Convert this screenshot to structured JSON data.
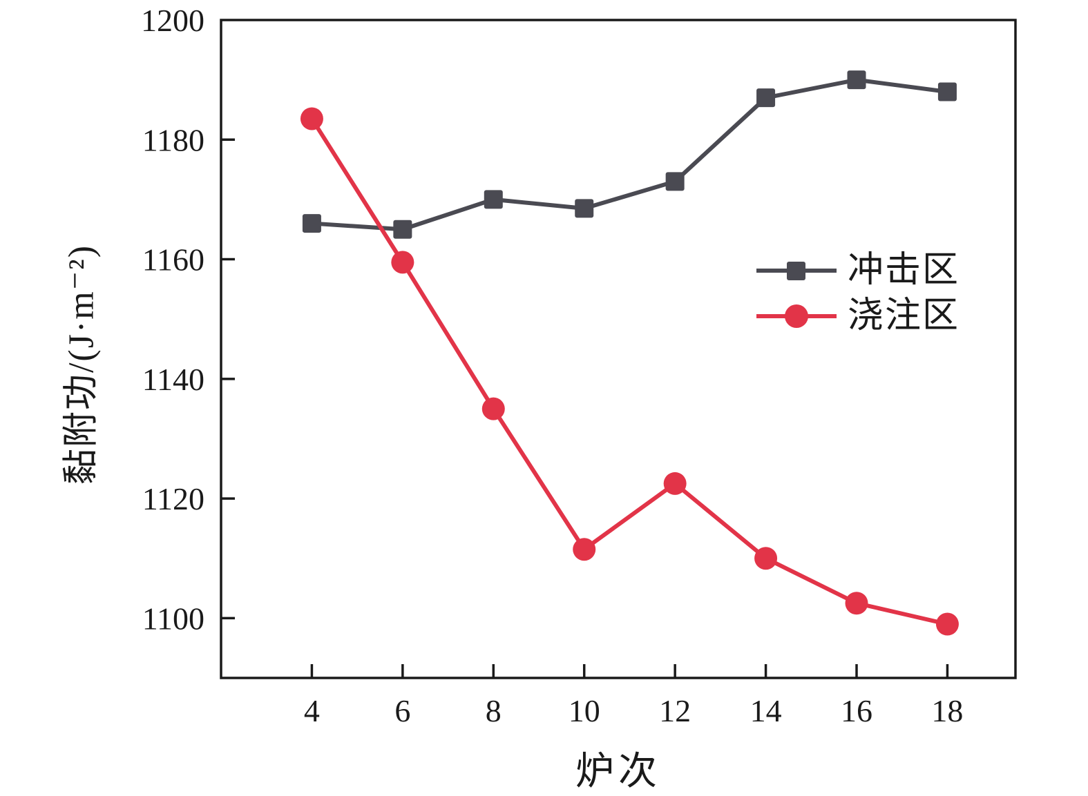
{
  "chart_data": {
    "type": "line",
    "title": "",
    "xlabel": "炉次",
    "ylabel": "黏附功/(J·m⁻²)",
    "x": [
      4,
      6,
      8,
      10,
      12,
      14,
      16,
      18
    ],
    "series": [
      {
        "name": "冲击区",
        "slug": "impact-zone",
        "marker": "square",
        "color": "#4a4a52",
        "values": [
          1166,
          1165,
          1170,
          1168.5,
          1173,
          1187,
          1190,
          1188
        ]
      },
      {
        "name": "浇注区",
        "slug": "pouring-zone",
        "marker": "circle",
        "color": "#e23448",
        "values": [
          1183.5,
          1159.5,
          1135,
          1111.5,
          1122.5,
          1110,
          1102.5,
          1099
        ]
      }
    ],
    "xticks": [
      "4",
      "6",
      "8",
      "10",
      "12",
      "14",
      "16",
      "18"
    ],
    "xtick_values": [
      4,
      6,
      8,
      10,
      12,
      14,
      16,
      18
    ],
    "yticks": [
      "1100",
      "1120",
      "1140",
      "1160",
      "1180",
      "1200"
    ],
    "ytick_values": [
      1100,
      1120,
      1140,
      1160,
      1180,
      1200
    ],
    "xlim": [
      2,
      19.5
    ],
    "ylim": [
      1090,
      1200
    ],
    "grid": false,
    "legend_position": "center-right",
    "axis_color": "#1a1a1a",
    "background_color": "#ffffff"
  }
}
